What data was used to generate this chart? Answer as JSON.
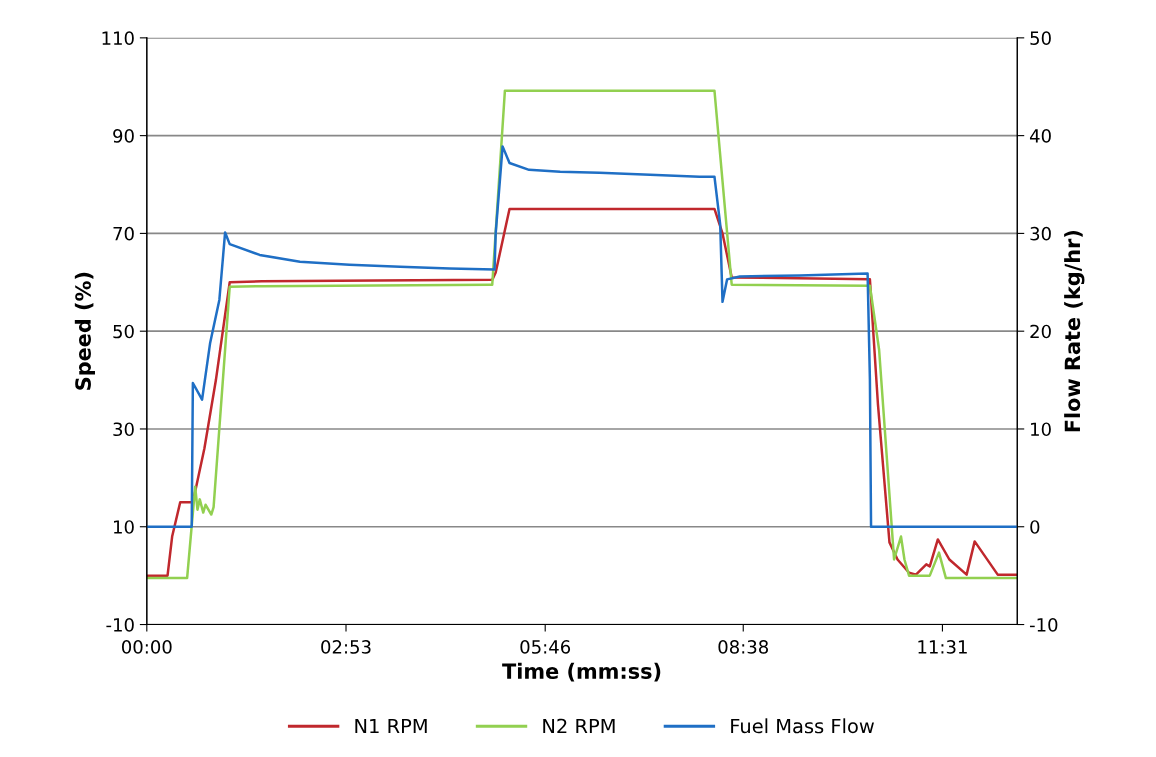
{
  "chart_data": {
    "type": "line",
    "xlabel": "Time (mm:ss)",
    "ylabel": "Speed (%)",
    "y2label": "Flow Rate (kg/hr)",
    "xlim": [
      0,
      756
    ],
    "xticks": [
      {
        "value": 0,
        "label": "00:00"
      },
      {
        "value": 173,
        "label": "02:53"
      },
      {
        "value": 346,
        "label": "05:46"
      },
      {
        "value": 518,
        "label": "08:38"
      },
      {
        "value": 691,
        "label": "11:31"
      }
    ],
    "ylim": [
      -10,
      110
    ],
    "yticks": [
      -10,
      10,
      30,
      50,
      70,
      90,
      110
    ],
    "y2lim": [
      -10,
      50
    ],
    "y2ticks": [
      -10,
      0,
      10,
      20,
      30,
      40,
      50
    ],
    "grid": "y",
    "legend": "bottom",
    "marker": "none",
    "line_style": "solid",
    "series": [
      {
        "name": "N1 RPM",
        "color": "#c0282d",
        "x": [
          0,
          18,
          22,
          29,
          40,
          50,
          60,
          72,
          100,
          300,
          303,
          315,
          493,
          500,
          508,
          628,
          635,
          645,
          652,
          662,
          668,
          677,
          680,
          687,
          697,
          712,
          719,
          739,
          755
        ],
        "values": [
          0,
          0,
          8,
          15,
          15,
          26,
          40,
          60,
          60.2,
          60.5,
          62,
          75,
          75,
          70,
          61,
          60.6,
          35,
          6.8,
          3.3,
          0.6,
          0.2,
          2.3,
          1.9,
          7.4,
          3.3,
          0.2,
          7,
          0.2,
          0.2
        ]
      },
      {
        "name": "N2 RPM",
        "color": "#92d050",
        "x": [
          0,
          35,
          42,
          44,
          46,
          49,
          51,
          56,
          58,
          72,
          100,
          298,
          300,
          311,
          493,
          508,
          628,
          636,
          649,
          655,
          658,
          662,
          680,
          688,
          694,
          755
        ],
        "values": [
          -0.5,
          -0.5,
          18.2,
          13.5,
          15.6,
          12.9,
          14.5,
          12.5,
          14,
          59.1,
          59.2,
          59.5,
          59.5,
          99.2,
          99.2,
          59.5,
          59.3,
          46.2,
          3.3,
          8,
          3.3,
          0,
          0,
          4.7,
          -0.5,
          -0.5
        ]
      },
      {
        "name": "Fuel Mass Flow",
        "color": "#1f6fc5",
        "axis": "y2",
        "x": [
          0,
          39,
          40,
          48,
          55,
          63,
          68,
          72,
          98,
          133,
          176,
          220,
          263,
          302,
          303,
          309,
          315,
          332,
          359,
          393,
          437,
          480,
          493,
          498,
          500,
          504,
          515,
          567,
          626,
          628,
          629,
          755
        ],
        "values": [
          0,
          0,
          14.7,
          13,
          18.8,
          23.2,
          30.1,
          28.9,
          27.8,
          27.1,
          26.8,
          26.6,
          26.4,
          26.3,
          30,
          38.9,
          37.2,
          36.5,
          36.3,
          36.2,
          36,
          35.8,
          35.8,
          30.9,
          23,
          25.3,
          25.6,
          25.7,
          25.9,
          15.1,
          0,
          0
        ]
      }
    ]
  }
}
